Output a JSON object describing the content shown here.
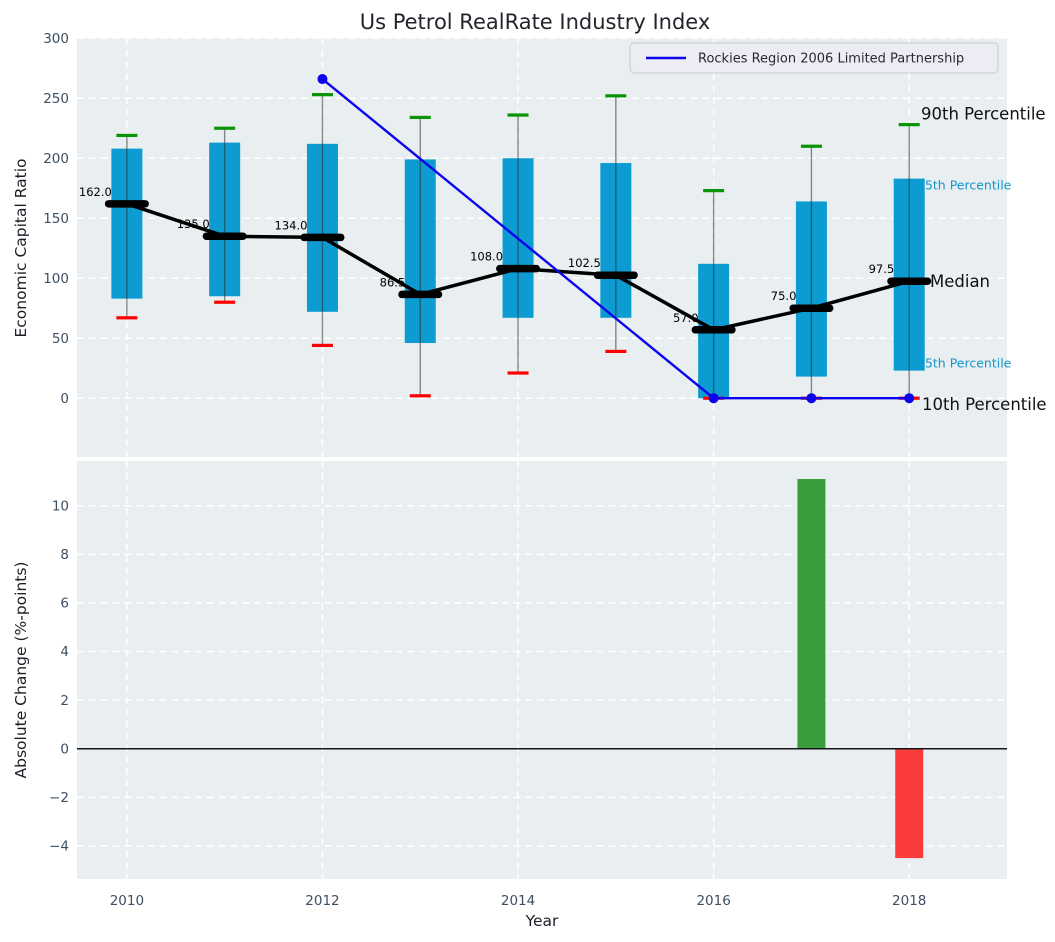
{
  "title": "Us Petrol RealRate Industry Index",
  "colors": {
    "panel_background": "#e9eef0",
    "grid": "#ffffff",
    "tick_label": "#3d4f63",
    "box": "#0d9cd1",
    "whisker": "rgba(45,45,45,0.55)",
    "cap_90th": "#089404",
    "cap_10th": "#fd0000",
    "median": "#000000",
    "company_line": "#0b02ee",
    "bar_positive": "#3a9d3b",
    "bar_negative": "#fb3c3c",
    "annotation_percentile": "#1496c9",
    "annotation_dark": "#111111",
    "legend_background": "#ecedf4",
    "legend_border": "#c8c9ce",
    "zero_line": "#151515"
  },
  "chart_data": [
    {
      "type": "boxplot",
      "title": "Us Petrol RealRate Industry Index",
      "ylabel": "Economic Capital Ratio",
      "ylim": [
        -49,
        300.2
      ],
      "yticks": [
        0,
        50,
        100,
        150,
        200,
        250,
        300
      ],
      "grid": true,
      "legend_position": "upper right",
      "years": [
        2010,
        2011,
        2012,
        2013,
        2014,
        2015,
        2016,
        2017,
        2018
      ],
      "series": [
        {
          "name": "90th Percentile",
          "values": [
            219,
            225,
            253,
            234,
            236,
            252,
            173,
            210,
            228
          ]
        },
        {
          "name": "75th Percentile",
          "values": [
            208,
            213,
            212,
            199,
            200,
            196,
            112,
            164,
            183
          ]
        },
        {
          "name": "Median",
          "values": [
            162,
            135,
            134,
            86.5,
            108,
            102.5,
            57,
            75,
            97.5
          ]
        },
        {
          "name": "25th Percentile",
          "values": [
            83,
            85,
            72,
            46,
            67,
            67,
            0,
            18,
            23
          ]
        },
        {
          "name": "10th Percentile",
          "values": [
            67,
            80,
            44,
            2,
            21,
            39,
            0,
            0,
            0
          ]
        }
      ],
      "median_labels": [
        "162.0",
        "135.0",
        "134.0",
        "86.5",
        "108.0",
        "102.5",
        "57.0",
        "75.0",
        "97.5"
      ],
      "overlay_line": {
        "label": "Rockies Region 2006 Limited Partnership",
        "x": [
          2012,
          2016,
          2017,
          2018
        ],
        "y": [
          266,
          0,
          0,
          0
        ]
      },
      "right_annotations": [
        {
          "text": "90th Percentile",
          "size": "large",
          "color_key": "annotation_dark"
        },
        {
          "text": "75th Percentile",
          "size": "small",
          "color_key": "annotation_percentile"
        },
        {
          "text": "Median",
          "size": "large",
          "color_key": "annotation_dark"
        },
        {
          "text": "25th Percentile",
          "size": "small",
          "color_key": "annotation_percentile"
        },
        {
          "text": "10th Percentile",
          "size": "large",
          "color_key": "annotation_dark"
        }
      ]
    },
    {
      "type": "bar",
      "ylabel": "Absolute Change (%-points)",
      "xlabel": "Year",
      "ylim": [
        -5.36,
        11.84
      ],
      "yticks": [
        -4,
        -2,
        0,
        2,
        4,
        6,
        8,
        10
      ],
      "xticks": [
        2010,
        2012,
        2014,
        2016,
        2018
      ],
      "grid": true,
      "bars": [
        {
          "year": 2017,
          "value": 11.1,
          "direction": "up"
        },
        {
          "year": 2018,
          "value": -4.5,
          "direction": "down"
        }
      ]
    }
  ]
}
